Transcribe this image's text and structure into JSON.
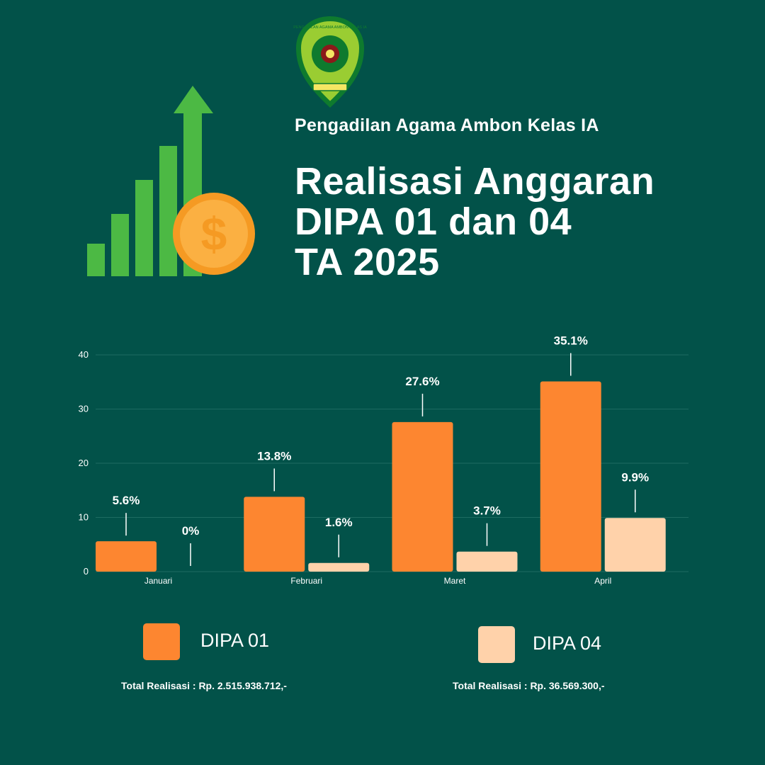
{
  "header": {
    "org_name": "Pengadilan Agama Ambon Kelas IA",
    "title_lines": [
      "Realisasi Anggaran",
      "DIPA 01 dan 04",
      "TA 2025"
    ],
    "logo_text": "PENGADILAN AGAMA AMBON KELAS IA"
  },
  "icons": {
    "logo": "court-emblem-icon",
    "hero": "growth-chart-dollar-icon"
  },
  "colors": {
    "background": "#025249",
    "dipa01": "#FD8630",
    "dipa04": "#FFD2AA",
    "hero_green": "#4CB944",
    "coin": "#F9A33A"
  },
  "chart_data": {
    "type": "bar",
    "categories": [
      "Januari",
      "Februari",
      "Maret",
      "April"
    ],
    "series": [
      {
        "name": "DIPA 01",
        "values": [
          5.6,
          13.8,
          27.6,
          35.1
        ],
        "labels": [
          "5.6%",
          "13.8%",
          "27.6%",
          "35.1%"
        ]
      },
      {
        "name": "DIPA 04",
        "values": [
          0,
          1.6,
          3.7,
          9.9
        ],
        "labels": [
          "0%",
          "1.6%",
          "3.7%",
          "9.9%"
        ]
      }
    ],
    "ylim": [
      0,
      40
    ],
    "yticks": [
      0,
      10,
      20,
      30,
      40
    ],
    "grid": true,
    "legend_position": "bottom"
  },
  "legend": {
    "dipa01": {
      "label": "DIPA 01",
      "total": "Total Realisasi : Rp. 2.515.938.712,-"
    },
    "dipa04": {
      "label": "DIPA 04",
      "total": "Total Realisasi : Rp. 36.569.300,-"
    }
  }
}
